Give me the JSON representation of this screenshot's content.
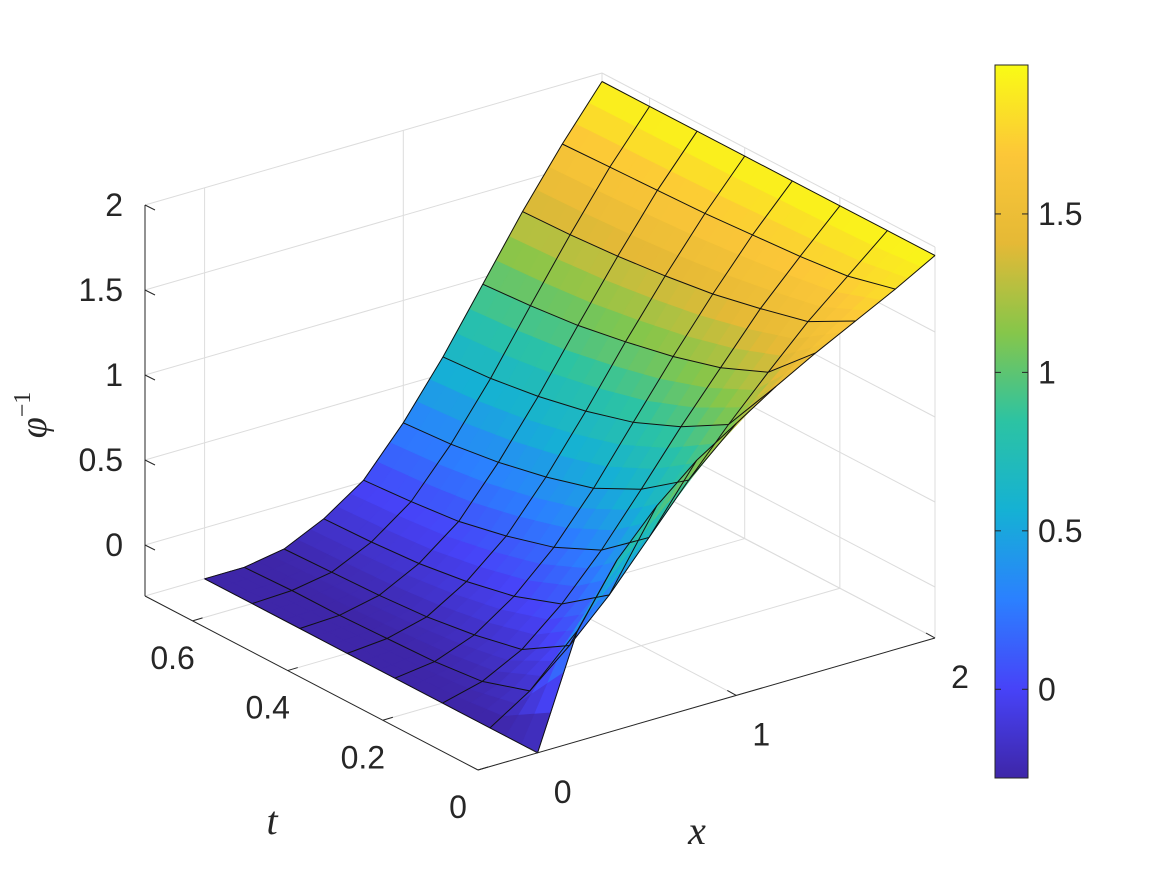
{
  "chart_data": {
    "type": "surface",
    "title": "",
    "xlabel": "x",
    "ylabel": "t",
    "zlabel": "φ",
    "zlabel_sup": "−1",
    "x": [
      0.0,
      0.2,
      0.4,
      0.6,
      0.8,
      1.0,
      1.2,
      1.4,
      1.6,
      1.8,
      2.0
    ],
    "t": [
      0.0,
      0.1,
      0.2,
      0.3,
      0.4,
      0.5,
      0.6,
      0.7
    ],
    "z": [
      [
        -0.3,
        0.35,
        0.7,
        0.95,
        1.15,
        1.3,
        1.45,
        1.58,
        1.7,
        1.82,
        1.95
      ],
      [
        -0.3,
        -0.15,
        0.05,
        0.28,
        0.55,
        0.82,
        1.08,
        1.32,
        1.55,
        1.75,
        1.95
      ],
      [
        -0.3,
        -0.24,
        -0.12,
        0.08,
        0.33,
        0.62,
        0.92,
        1.2,
        1.48,
        1.72,
        1.95
      ],
      [
        -0.3,
        -0.27,
        -0.18,
        -0.02,
        0.2,
        0.48,
        0.8,
        1.12,
        1.42,
        1.7,
        1.95
      ],
      [
        -0.3,
        -0.28,
        -0.22,
        -0.08,
        0.12,
        0.4,
        0.72,
        1.06,
        1.38,
        1.68,
        1.95
      ],
      [
        -0.3,
        -0.29,
        -0.24,
        -0.12,
        0.06,
        0.34,
        0.66,
        1.01,
        1.35,
        1.67,
        1.95
      ],
      [
        -0.3,
        -0.29,
        -0.25,
        -0.14,
        0.03,
        0.3,
        0.62,
        0.98,
        1.33,
        1.66,
        1.95
      ],
      [
        -0.3,
        -0.3,
        -0.26,
        -0.15,
        0.01,
        0.28,
        0.6,
        0.96,
        1.32,
        1.65,
        1.95
      ]
    ],
    "xlim": [
      -0.3,
      2.0
    ],
    "tlim": [
      0.0,
      0.7
    ],
    "zlim": [
      -0.3,
      2.0
    ],
    "x_ticks": [
      {
        "v": 0,
        "label": "0"
      },
      {
        "v": 1,
        "label": "1"
      },
      {
        "v": 2,
        "label": "2"
      }
    ],
    "t_ticks": [
      {
        "v": 0,
        "label": "0"
      },
      {
        "v": 0.2,
        "label": "0.2"
      },
      {
        "v": 0.4,
        "label": "0.4"
      },
      {
        "v": 0.6,
        "label": "0.6"
      }
    ],
    "z_ticks": [
      {
        "v": 0,
        "label": "0"
      },
      {
        "v": 0.5,
        "label": "0.5"
      },
      {
        "v": 1,
        "label": "1"
      },
      {
        "v": 1.5,
        "label": "1.5"
      },
      {
        "v": 2,
        "label": "2"
      }
    ],
    "colorbar": {
      "min": -0.28,
      "max": 1.97,
      "ticks": [
        {
          "v": 0,
          "label": "0"
        },
        {
          "v": 0.5,
          "label": "0.5"
        },
        {
          "v": 1,
          "label": "1"
        },
        {
          "v": 1.5,
          "label": "1.5"
        }
      ]
    },
    "colormap": "parula",
    "colormap_stops": [
      "#3e26a8",
      "#4743f8",
      "#2b80ff",
      "#15b1d4",
      "#2cc3a3",
      "#86c64a",
      "#e5b936",
      "#fcc738",
      "#f9fb15"
    ],
    "grid": true
  }
}
